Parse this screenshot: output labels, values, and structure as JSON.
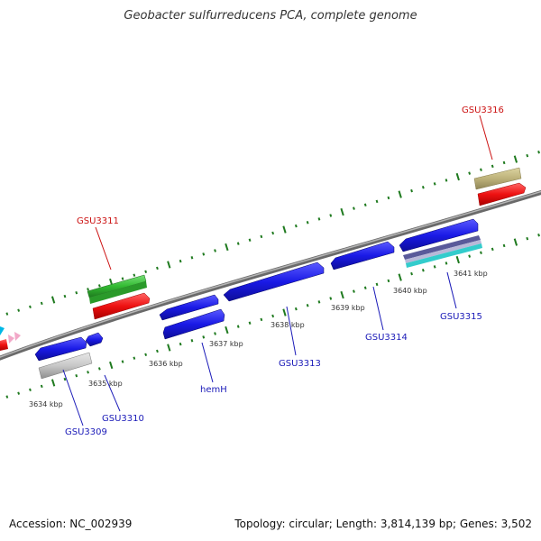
{
  "title": "Geobacter sulfurreducens PCA, complete genome",
  "footer": {
    "accession": "Accession: NC_002939",
    "info": "Topology: circular; Length: 3,814,139 bp; Genes: 3,502"
  },
  "colors": {
    "backbone": "#888888",
    "tick": "#1f7a1f",
    "gene_blue": "#1a1ae6",
    "gene_red": "#ee1111",
    "gene_green": "#33bb33",
    "gene_tan": "#bdb27a",
    "gene_gray": "#c8c8c8",
    "gene_purple": "#5a5a9a",
    "gene_cyan": "#33cccc",
    "label_blue": "#1a1ab8",
    "label_red": "#cc1111"
  },
  "kbp_labels": [
    "3634 kbp",
    "3635 kbp",
    "3636 kbp",
    "3637 kbp",
    "3638 kbp",
    "3639 kbp",
    "3640 kbp",
    "3641 kbp"
  ],
  "genes": {
    "GSU3309": "GSU3309",
    "GSU3310": "GSU3310",
    "GSU3311": "GSU3311",
    "hemH": "hemH",
    "GSU3313": "GSU3313",
    "GSU3314": "GSU3314",
    "GSU3315": "GSU3315",
    "GSU3316": "GSU3316"
  }
}
